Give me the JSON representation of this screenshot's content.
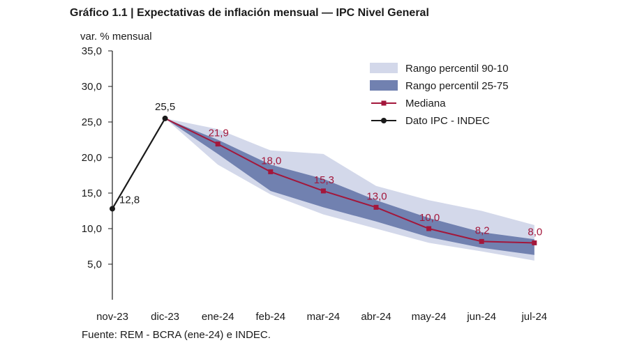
{
  "title": "Gráfico 1.1 | Expectativas de inflación mensual — IPC Nivel General",
  "source": "Fuente: REM - BCRA (ene-24) e INDEC.",
  "colors": {
    "band_90_10": "#d3d8ea",
    "band_25_75": "#7181b0",
    "median": "#a3173b",
    "ipc": "#1a1a1a",
    "axis": "#1a1a1a"
  },
  "chart_data": {
    "type": "line",
    "ylabel": "var. % mensual",
    "ylim": [
      0,
      35
    ],
    "yticks": [
      5,
      10,
      15,
      20,
      25,
      30,
      35
    ],
    "ytick_labels": [
      "5,0",
      "10,0",
      "15,0",
      "20,0",
      "25,0",
      "30,0",
      "35,0"
    ],
    "categories": [
      "nov-23",
      "dic-23",
      "ene-24",
      "feb-24",
      "mar-24",
      "abr-24",
      "may-24",
      "jun-24",
      "jul-24"
    ],
    "grid": false,
    "legend_position": "top-right",
    "series": [
      {
        "name": "Dato IPC - INDEC",
        "style": "line-circle",
        "values": [
          12.8,
          25.5,
          null,
          null,
          null,
          null,
          null,
          null,
          null
        ],
        "labels": [
          "12,8",
          "25,5",
          "",
          "",
          "",
          "",
          "",
          "",
          ""
        ]
      },
      {
        "name": "Mediana",
        "style": "line-square",
        "values": [
          null,
          25.5,
          21.9,
          18.0,
          15.3,
          13.0,
          10.0,
          8.2,
          8.0
        ],
        "labels": [
          "",
          "",
          "21,9",
          "18,0",
          "15,3",
          "13,0",
          "10,0",
          "8,2",
          "8,0"
        ]
      },
      {
        "name": "Rango percentil 90-10",
        "style": "band",
        "upper": [
          null,
          25.5,
          24.0,
          21.0,
          20.5,
          16.0,
          14.0,
          12.5,
          10.5
        ],
        "lower": [
          null,
          25.5,
          19.0,
          14.8,
          12.0,
          10.0,
          8.0,
          6.8,
          5.5
        ]
      },
      {
        "name": "Rango percentil 25-75",
        "style": "band",
        "upper": [
          null,
          25.5,
          22.5,
          19.0,
          17.0,
          14.0,
          11.5,
          9.5,
          8.5
        ],
        "lower": [
          null,
          25.5,
          20.5,
          15.3,
          13.0,
          11.0,
          8.8,
          7.3,
          6.3
        ]
      }
    ],
    "legend": [
      {
        "label": "Rango percentil 90-10",
        "kind": "band_90_10"
      },
      {
        "label": "Rango percentil 25-75",
        "kind": "band_25_75"
      },
      {
        "label": "Mediana",
        "kind": "median"
      },
      {
        "label": "Dato IPC - INDEC",
        "kind": "ipc"
      }
    ]
  }
}
